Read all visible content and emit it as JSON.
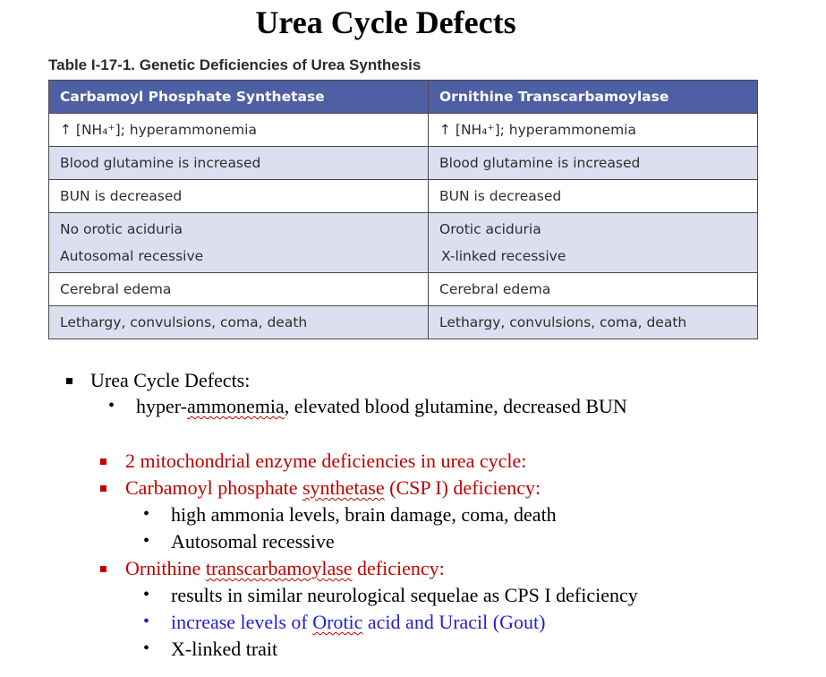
{
  "title": "Urea Cycle Defects",
  "table": {
    "caption": "Table I-17-1. Genetic Deficiencies of Urea Synthesis",
    "headers": [
      "Carbamoyl Phosphate Synthetase",
      "Ornithine Transcarbamoylase"
    ],
    "rows": [
      {
        "c1": "↑ [NH₄⁺]; hyperammonemia",
        "c2": "↑ [NH₄⁺]; hyperammonemia"
      },
      {
        "c1": "Blood glutamine is increased",
        "c2": "Blood glutamine is increased"
      },
      {
        "c1": "BUN is decreased",
        "c2": "BUN is decreased"
      },
      {
        "c1a": "No orotic aciduria",
        "c1b": "Autosomal recessive",
        "c2a": "Orotic aciduria",
        "c2b": "X-linked recessive"
      },
      {
        "c1": "Cerebral edema",
        "c2": "Cerebral edema"
      },
      {
        "c1": "Lethargy, convulsions, coma, death",
        "c2": "Lethargy, convulsions, coma, death"
      }
    ]
  },
  "notes": {
    "item1": "Urea Cycle Defects:",
    "item1_sub": {
      "part1": "hyper-",
      "part2": "ammonemia",
      "part3": ", elevated blood glutamine, decreased BUN"
    },
    "item2": "2 mitochondrial enzyme deficiencies in urea cycle:",
    "item3": {
      "part1": "Carbamoyl phosphate ",
      "part2": "synthetase",
      "part3": " (CSP I) deficiency:"
    },
    "item3_sub1": "high ammonia levels, brain damage, coma, death",
    "item3_sub2": "Autosomal recessive",
    "item4": {
      "part1": "Ornithine ",
      "part2": "transcarbamoylase",
      "part3": " deficiency:"
    },
    "item4_sub1": "results in similar neurological sequelae as CPS I deficiency",
    "item4_sub2": {
      "part1": "increase levels of ",
      "part2": "Orotic",
      "part3": " acid and Uracil (Gout)"
    },
    "item4_sub3": "X-linked trait"
  },
  "colors": {
    "header_bg": "#4f5fa3",
    "row_alt_bg": "#dcdff0",
    "red_text": "#c00000",
    "blue_text": "#1f1fd6"
  }
}
